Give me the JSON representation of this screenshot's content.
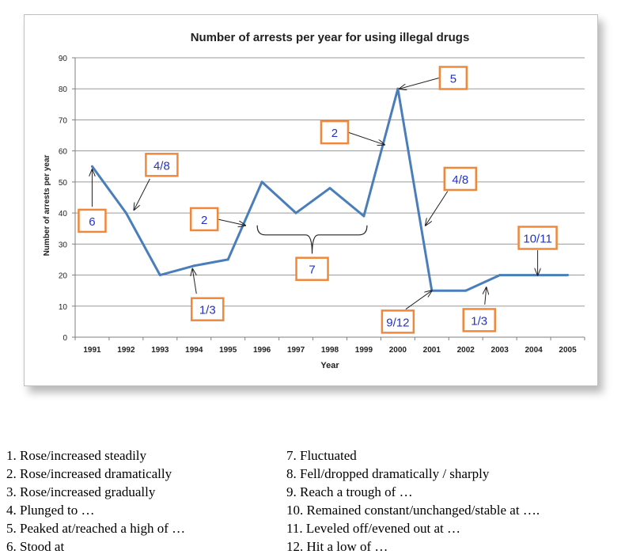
{
  "chart_data": {
    "type": "line",
    "title": "Number of arrests per year for using illegal drugs",
    "xlabel": "Year",
    "ylabel": "Number of arrests per year",
    "categories": [
      "1991",
      "1992",
      "1993",
      "1994",
      "1995",
      "1996",
      "1997",
      "1998",
      "1999",
      "2000",
      "2001",
      "2002",
      "2003",
      "2004",
      "2005"
    ],
    "series": [
      {
        "values": [
          55,
          40,
          20,
          23,
          25,
          50,
          40,
          48,
          39,
          80,
          15,
          15,
          20,
          20,
          20
        ]
      }
    ],
    "ylim": [
      0,
      90
    ],
    "yticks": [
      0,
      10,
      20,
      30,
      40,
      50,
      60,
      70,
      80,
      90
    ],
    "grid": true,
    "line_color": "#4a7ebb",
    "box_color": "#f0883c",
    "annotations": [
      {
        "label": "6",
        "x": "1991",
        "y": 55
      },
      {
        "label": "4/8",
        "x": "1992",
        "y": 40
      },
      {
        "label": "1/3",
        "x": "1994",
        "y": 23
      },
      {
        "label": "2",
        "x": "1995",
        "y": 36
      },
      {
        "label": "7",
        "x": "1997",
        "y": 40
      },
      {
        "label": "2",
        "x": "1999",
        "y": 62
      },
      {
        "label": "5",
        "x": "2000",
        "y": 80
      },
      {
        "label": "4/8",
        "x": "2001",
        "y": 35
      },
      {
        "label": "9/12",
        "x": "2001",
        "y": 15
      },
      {
        "label": "1/3",
        "x": "2002",
        "y": 16
      },
      {
        "label": "10/11",
        "x": "2004",
        "y": 20
      }
    ]
  },
  "legend_left": [
    "1.  Rose/increased steadily",
    "2.  Rose/increased dramatically",
    "3.  Rose/increased gradually",
    "4.  Plunged to …",
    "5.  Peaked at/reached a high of …",
    "6.  Stood at"
  ],
  "legend_right": [
    "7.  Fluctuated",
    "8.  Fell/dropped dramatically / sharply",
    "9.  Reach a trough of …",
    "10. Remained constant/unchanged/stable at ….",
    "11.  Leveled off/evened out at …",
    "12. Hit a low of …"
  ]
}
